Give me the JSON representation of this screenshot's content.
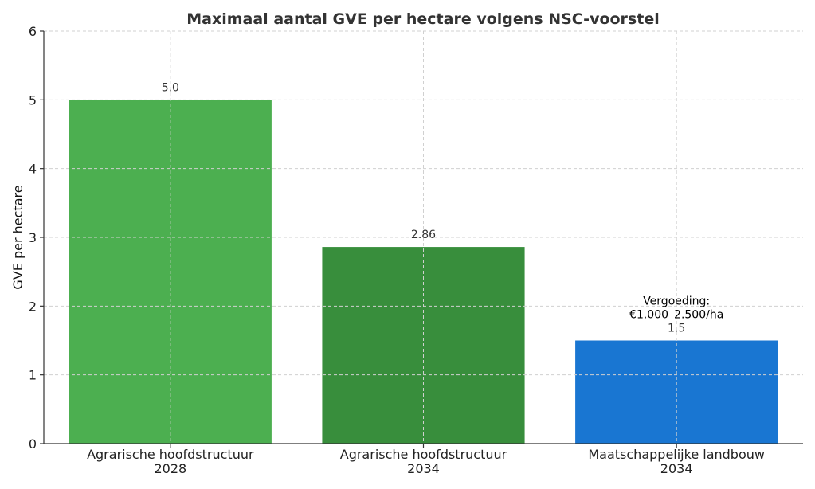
{
  "chart_data": {
    "type": "bar",
    "title": "Maximaal aantal GVE per hectare volgens NSC-voorstel",
    "xlabel": "",
    "ylabel": "GVE per hectare",
    "ylim": [
      0,
      6
    ],
    "yticks": [
      "0",
      "1",
      "2",
      "3",
      "4",
      "5",
      "6"
    ],
    "grid": true,
    "categories": [
      [
        "Agrarische hoofdstructuur",
        "2028"
      ],
      [
        "Agrarische hoofdstructuur",
        "2034"
      ],
      [
        "Maatschappelijke landbouw",
        "2034"
      ]
    ],
    "values": [
      5.0,
      2.86,
      1.5
    ],
    "value_labels": [
      "5.0",
      "2.86",
      "1.5"
    ],
    "colors": [
      "#4CAF50",
      "#388E3C",
      "#1976D2"
    ],
    "annotations": [
      {
        "bar_index": 2,
        "lines": [
          "Vergoeding:",
          "€1.000–2.500/ha"
        ]
      }
    ]
  }
}
